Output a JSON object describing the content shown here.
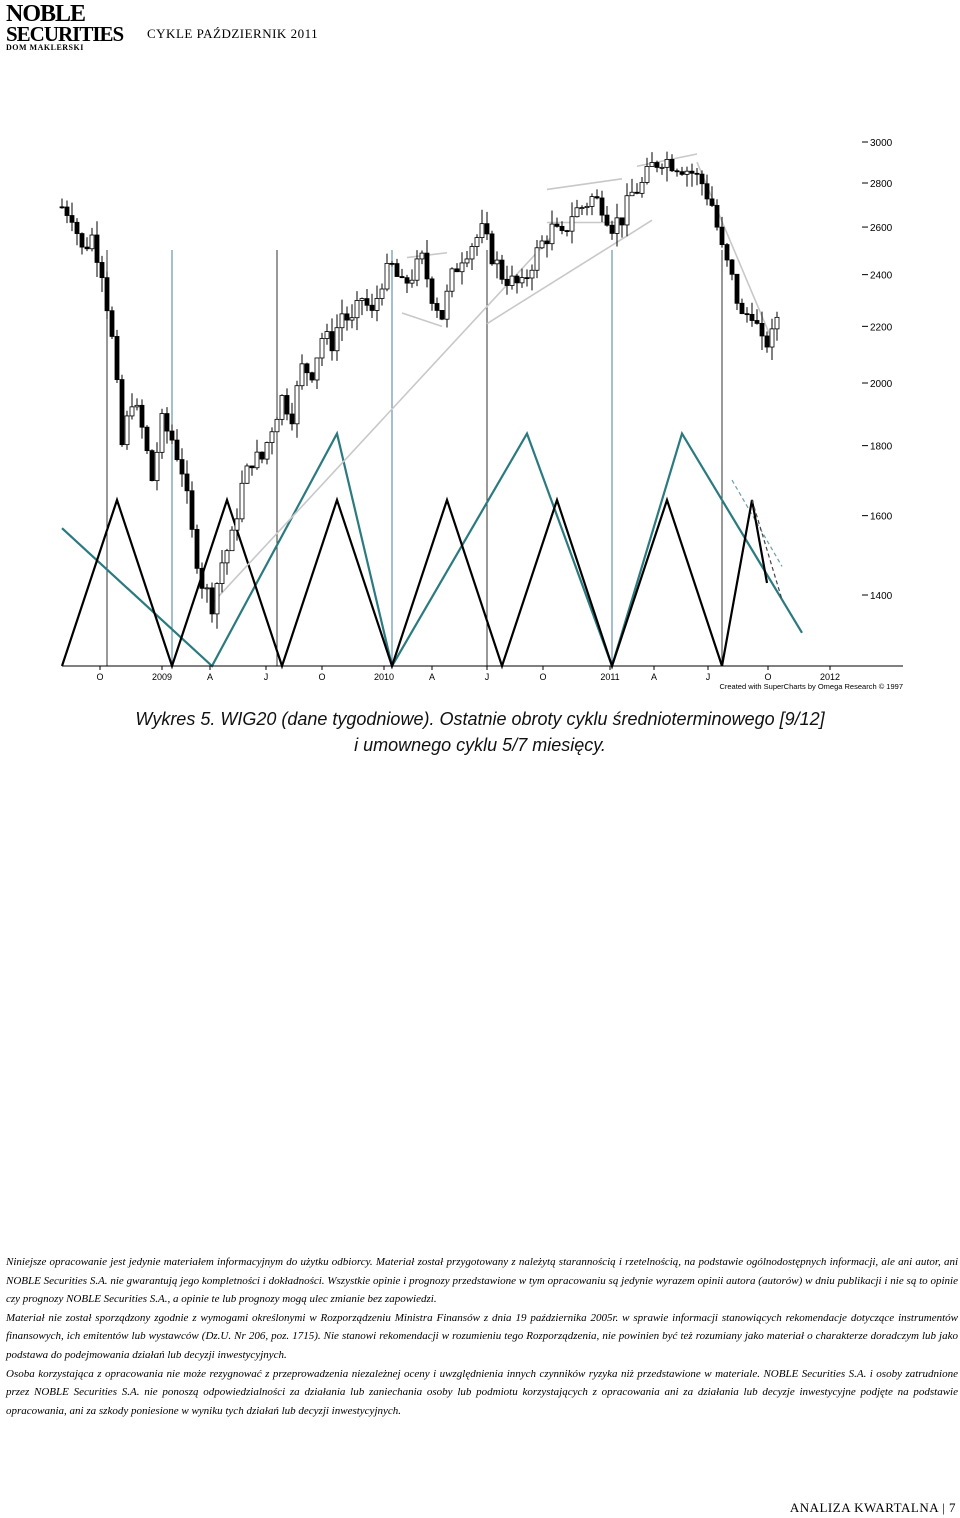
{
  "header": {
    "logo_line1": "NOBLE",
    "logo_line2": "SECURITIES",
    "logo_line3": "DOM MAKLERSKI",
    "title": "CYKLE PAŹDZIERNIK 2011"
  },
  "chart_data": {
    "type": "candlestick",
    "ylim": [
      1300,
      3050
    ],
    "yticks": [
      1400,
      1600,
      1800,
      2000,
      2200,
      2400,
      2600,
      2800,
      3000
    ],
    "ytick_labels": [
      "1400",
      "1600",
      "1800",
      "2000",
      "2200",
      "2400",
      "2600",
      "2800",
      "3000"
    ],
    "xticks": [
      "O",
      "2009",
      "A",
      "J",
      "O",
      "2010",
      "A",
      "J",
      "O",
      "2011",
      "A",
      "J",
      "O",
      "2012"
    ],
    "credit": "Created with SuperCharts by Omega Research © 1997",
    "grid": false,
    "price_points": [
      [
        0,
        2690
      ],
      [
        2,
        2660
      ],
      [
        4,
        2500
      ],
      [
        6,
        2560
      ],
      [
        8,
        2420
      ],
      [
        10,
        2150
      ],
      [
        12,
        1800
      ],
      [
        14,
        1950
      ],
      [
        16,
        1850
      ],
      [
        18,
        1700
      ],
      [
        20,
        1870
      ],
      [
        22,
        1820
      ],
      [
        24,
        1730
      ],
      [
        26,
        1550
      ],
      [
        28,
        1430
      ],
      [
        30,
        1380
      ],
      [
        32,
        1480
      ],
      [
        34,
        1540
      ],
      [
        36,
        1680
      ],
      [
        38,
        1760
      ],
      [
        40,
        1760
      ],
      [
        42,
        1860
      ],
      [
        44,
        1950
      ],
      [
        46,
        1900
      ],
      [
        48,
        2050
      ],
      [
        50,
        2040
      ],
      [
        52,
        2160
      ],
      [
        54,
        2140
      ],
      [
        56,
        2250
      ],
      [
        58,
        2210
      ],
      [
        60,
        2310
      ],
      [
        62,
        2240
      ],
      [
        64,
        2380
      ],
      [
        66,
        2430
      ],
      [
        68,
        2350
      ],
      [
        70,
        2400
      ],
      [
        72,
        2460
      ],
      [
        74,
        2320
      ],
      [
        76,
        2240
      ],
      [
        78,
        2390
      ],
      [
        80,
        2480
      ],
      [
        82,
        2530
      ],
      [
        84,
        2580
      ],
      [
        86,
        2480
      ],
      [
        88,
        2400
      ],
      [
        90,
        2370
      ],
      [
        92,
        2350
      ],
      [
        94,
        2450
      ],
      [
        96,
        2530
      ],
      [
        98,
        2590
      ],
      [
        100,
        2550
      ],
      [
        102,
        2660
      ],
      [
        104,
        2690
      ],
      [
        106,
        2730
      ],
      [
        108,
        2700
      ],
      [
        110,
        2610
      ],
      [
        112,
        2640
      ],
      [
        114,
        2750
      ],
      [
        116,
        2790
      ],
      [
        118,
        2880
      ],
      [
        120,
        2920
      ],
      [
        122,
        2900
      ],
      [
        124,
        2880
      ],
      [
        126,
        2850
      ],
      [
        128,
        2800
      ],
      [
        130,
        2700
      ],
      [
        132,
        2500
      ],
      [
        134,
        2380
      ],
      [
        136,
        2230
      ],
      [
        138,
        2260
      ],
      [
        140,
        2130
      ],
      [
        142,
        2160
      ],
      [
        144,
        2320
      ]
    ],
    "trend_lines": [
      {
        "name": "rising support",
        "points": [
          [
            30,
            1380
          ],
          [
            98,
            2560
          ]
        ]
      },
      {
        "name": "falling wedge upper",
        "points": [
          [
            69,
            2470
          ],
          [
            77,
            2490
          ]
        ]
      },
      {
        "name": "falling wedge lower",
        "points": [
          [
            68,
            2250
          ],
          [
            76,
            2200
          ]
        ]
      },
      {
        "name": "rising wedge lower",
        "points": [
          [
            85,
            2210
          ],
          [
            118,
            2630
          ]
        ]
      },
      {
        "name": "rectangle upper",
        "points": [
          [
            97,
            2770
          ],
          [
            112,
            2820
          ]
        ]
      },
      {
        "name": "rectangle lower",
        "points": [
          [
            97,
            2620
          ],
          [
            112,
            2620
          ]
        ]
      },
      {
        "name": "top line",
        "points": [
          [
            115,
            2880
          ],
          [
            127,
            2940
          ]
        ]
      },
      {
        "name": "falling line",
        "points": [
          [
            127,
            2900
          ],
          [
            142,
            2150
          ]
        ]
      }
    ],
    "cycle_lines": {
      "black": [
        [
          0,
          0
        ],
        [
          11,
          1
        ],
        [
          22,
          0
        ],
        [
          33,
          1
        ],
        [
          44,
          0
        ],
        [
          55,
          1
        ],
        [
          66,
          0
        ],
        [
          77,
          1
        ],
        [
          88,
          0
        ],
        [
          99,
          1
        ],
        [
          110,
          0
        ],
        [
          121,
          1
        ],
        [
          132,
          0
        ],
        [
          138,
          1
        ],
        [
          141,
          0.5
        ]
      ],
      "black_dashed": [
        [
          138,
          1
        ],
        [
          144,
          0.4
        ]
      ],
      "teal": [
        [
          0,
          0.83
        ],
        [
          30,
          0
        ],
        [
          55,
          1.4
        ],
        [
          66,
          0
        ],
        [
          93,
          1.4
        ],
        [
          110,
          0
        ],
        [
          124,
          1.4
        ],
        [
          148,
          0.2
        ]
      ],
      "teal_dashed": [
        [
          134,
          1.12
        ],
        [
          144,
          0.6
        ]
      ]
    },
    "cycle_verticals": [
      {
        "x": 9,
        "color": "#333333"
      },
      {
        "x": 22,
        "color": "#4a7fa0"
      },
      {
        "x": 43,
        "color": "#333333"
      },
      {
        "x": 66,
        "color": "#4a7fa0"
      },
      {
        "x": 85,
        "color": "#333333"
      },
      {
        "x": 110,
        "color": "#4a7fa0"
      },
      {
        "x": 132,
        "color": "#333333"
      }
    ],
    "colors": {
      "price": "#000000",
      "black_cycle": "#000000",
      "teal_cycle": "#2a7a7f",
      "trend": "#c8c8c8"
    }
  },
  "caption": {
    "line1": "Wykres 5. WIG20 (dane tygodniowe). Ostatnie obroty cyklu średnioterminowego [9/12]",
    "line2": "i umownego cyklu 5/7 miesięcy."
  },
  "disclaimer": {
    "p1": "Niniejsze opracowanie jest jedynie materiałem informacyjnym do użytku odbiorcy. Materiał został przygotowany z należytą starannością i rzetelnością, na podstawie ogólnodostępnych informacji, ale ani autor, ani NOBLE Securities S.A. nie gwarantują jego kompletności i dokładności. Wszystkie opinie i prognozy przedstawione w tym opracowaniu są jedynie wyrazem opinii autora (autorów) w dniu publikacji i nie są to opinie czy prognozy NOBLE Securities S.A., a opinie te lub prognozy mogą ulec zmianie bez zapowiedzi.",
    "p2": "Materiał nie został sporządzony zgodnie z wymogami określonymi w Rozporządzeniu Ministra Finansów z dnia 19 października 2005r. w sprawie informacji stanowiących rekomendacje dotyczące instrumentów finansowych, ich emitentów lub wystawców (Dz.U. Nr 206, poz. 1715). Nie stanowi rekomendacji w rozumieniu tego Rozporządzenia, nie powinien być też rozumiany jako materiał o charakterze doradczym lub jako podstawa do podejmowania działań lub decyzji inwestycyjnych.",
    "p3": "Osoba korzystająca z opracowania nie może rezygnować z przeprowadzenia niezależnej oceny i uwzględnienia innych czynników ryzyka niż przedstawione w materiale. NOBLE Securities S.A. i osoby zatrudnione przez NOBLE Securities S.A. nie ponoszą odpowiedzialności za działania lub zaniechania osoby lub podmiotu korzystających z opracowania ani za działania lub decyzje inwestycyjne podjęte na podstawie opracowania, ani za szkody poniesione w wyniku tych działań lub decyzji inwestycyjnych."
  },
  "footer": {
    "label": "ANALIZA KWARTALNA | 7"
  }
}
